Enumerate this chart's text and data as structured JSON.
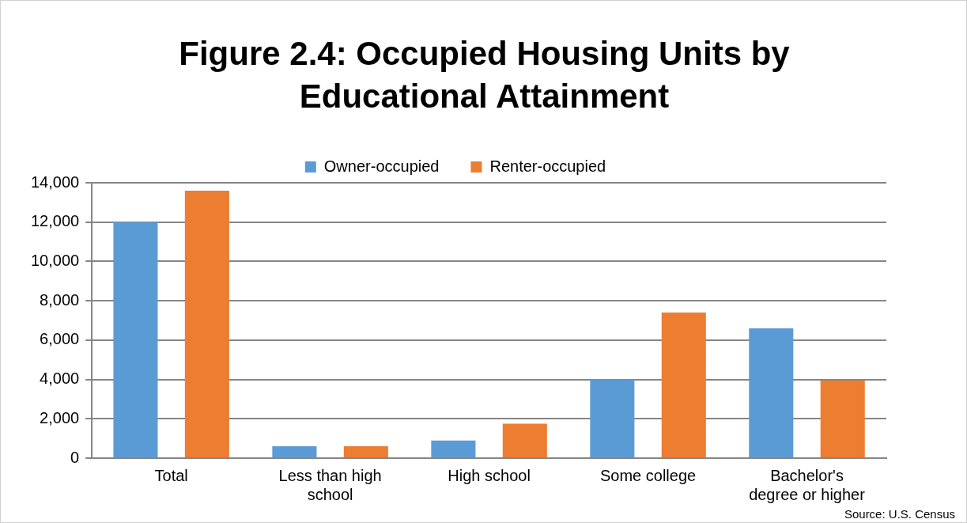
{
  "chart_data": {
    "type": "bar",
    "title": "Figure 2.4: Occupied Housing Units by Educational Attainment",
    "categories": [
      "Total",
      "Less than high school",
      "High school",
      "Some college",
      "Bachelor's degree or higher"
    ],
    "series": [
      {
        "name": "Owner-occupied",
        "color": "#5b9bd5",
        "values": [
          12000,
          600,
          900,
          4000,
          6600
        ]
      },
      {
        "name": "Renter-occupied",
        "color": "#ed7d31",
        "values": [
          13600,
          600,
          1750,
          7400,
          3950
        ]
      }
    ],
    "ylim": [
      0,
      14000
    ],
    "yticks": [
      {
        "value": 0,
        "label": "0"
      },
      {
        "value": 2000,
        "label": "2,000"
      },
      {
        "value": 4000,
        "label": "4,000"
      },
      {
        "value": 6000,
        "label": "6,000"
      },
      {
        "value": 8000,
        "label": "8,000"
      },
      {
        "value": 10000,
        "label": "10,000"
      },
      {
        "value": 12000,
        "label": "12,000"
      },
      {
        "value": 14000,
        "label": "14,000"
      }
    ],
    "grid": "y",
    "legend": "top",
    "annotations": [
      "Source: U.S. Census"
    ]
  }
}
